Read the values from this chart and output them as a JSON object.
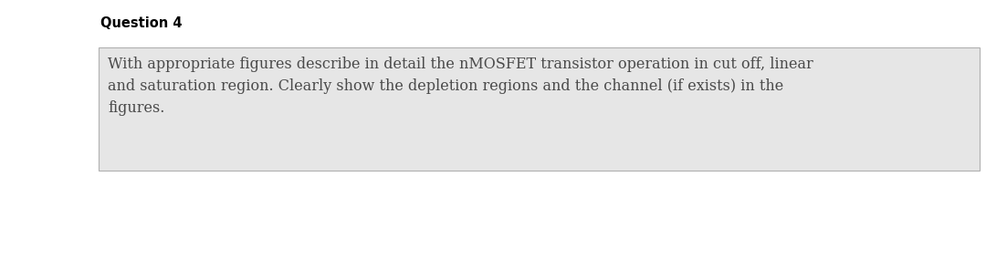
{
  "title": "Question 4",
  "title_fontsize": 10.5,
  "body_text": "With appropriate figures describe in detail the nMOSFET transistor operation in cut off, linear\nand saturation region. Clearly show the depletion regions and the channel (if exists) in the\nfigures.",
  "body_fontsize": 11.5,
  "box_facecolor": "#e6e6e6",
  "box_edgecolor": "#b0b0b0",
  "background_color": "#ffffff",
  "text_color": "#4a4a4a",
  "title_color": "#000000"
}
